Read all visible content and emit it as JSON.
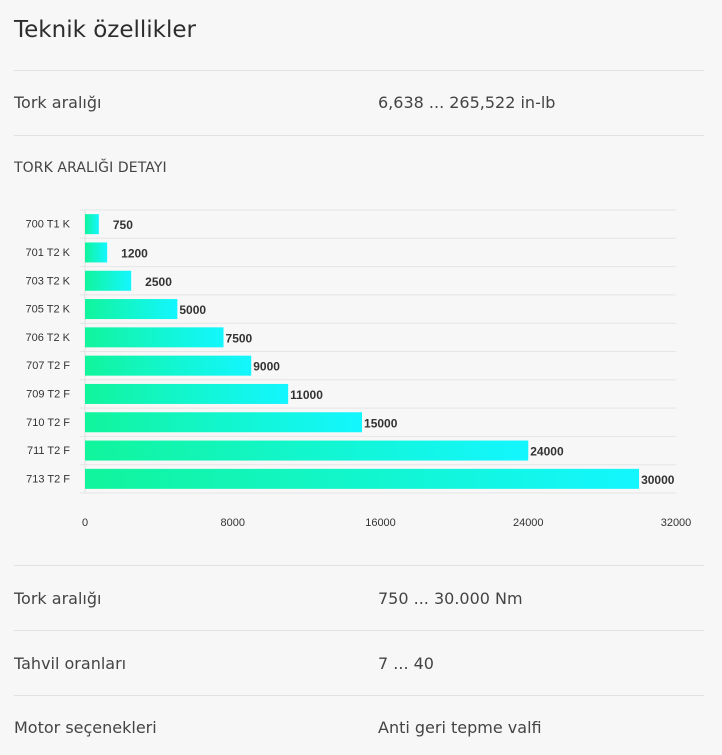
{
  "page": {
    "title": "Teknik özellikler"
  },
  "specs_top": [
    {
      "label": "Tork aralığı",
      "value": "6,638 ... 265,522 in-lb"
    }
  ],
  "section": {
    "heading": "TORK ARALIĞI DETAYI"
  },
  "chart_data": {
    "type": "bar",
    "orientation": "horizontal",
    "categories": [
      "700 T1 K",
      "701 T2 K",
      "703 T2 K",
      "705 T2 K",
      "706 T2 K",
      "707 T2 F",
      "709 T2 F",
      "710 T2 F",
      "711 T2 F",
      "713 T2 F"
    ],
    "values": [
      750,
      1200,
      2500,
      5000,
      7500,
      9000,
      11000,
      15000,
      24000,
      30000
    ],
    "value_labels": [
      "750",
      "1200",
      "2500",
      "5000",
      "7500",
      "9000",
      "11000",
      "15000",
      "24000",
      "30000"
    ],
    "xlim": [
      0,
      32000
    ],
    "xticks": [
      0,
      8000,
      16000,
      24000,
      32000
    ],
    "xtick_labels": [
      "0",
      "8000",
      "16000",
      "24000",
      "32000"
    ],
    "grid": true,
    "bar_gradient": [
      "#11f59c",
      "#13f6ff"
    ]
  },
  "specs_bottom": [
    {
      "label": "Tork aralığı",
      "value": "750 ... 30.000 Nm"
    },
    {
      "label": "Tahvil oranları",
      "value": "7 ... 40"
    },
    {
      "label": "Motor seçenekleri",
      "value": "Anti geri tepme valfi"
    }
  ]
}
